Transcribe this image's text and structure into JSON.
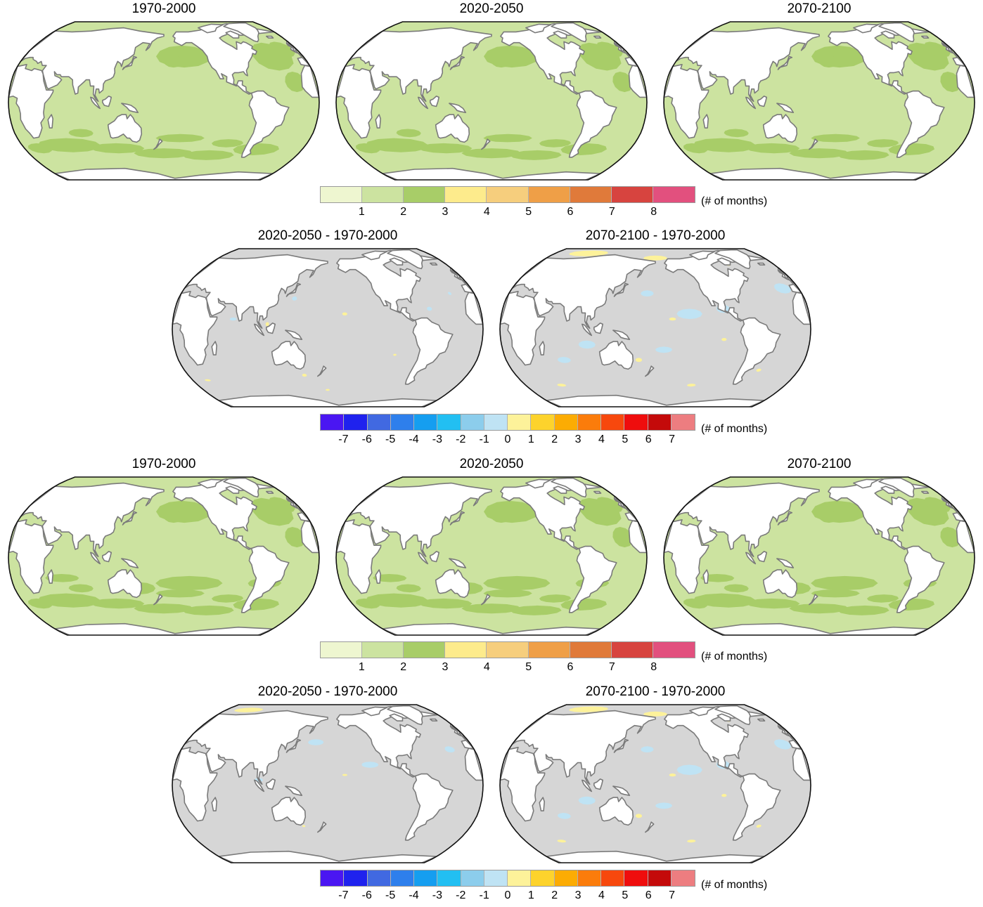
{
  "figure": {
    "block1": {
      "absolute": {
        "titles": [
          "1970-2000",
          "2020-2050",
          "2070-2100"
        ]
      },
      "absolute_colorbar": {
        "colors": [
          "#eef6d0",
          "#cce3a0",
          "#a8cd68",
          "#fdeb8c",
          "#f6ce7d",
          "#ef9f47",
          "#e07a3a",
          "#d7443f",
          "#e2507e"
        ],
        "ticks": [
          "1",
          "2",
          "3",
          "4",
          "5",
          "6",
          "7",
          "8"
        ],
        "unit": "(# of months)"
      },
      "difference": {
        "titles": [
          "2020-2050 - 1970-2000",
          "2070-2100 - 1970-2000"
        ]
      },
      "difference_colorbar": {
        "colors": [
          "#4a16f2",
          "#1f22ee",
          "#4169e1",
          "#2e7fec",
          "#159ef0",
          "#22bff2",
          "#8ccdec",
          "#bfe3f4",
          "#fdf29a",
          "#fdd32c",
          "#fcac03",
          "#fb7c0b",
          "#f7480d",
          "#ef0d0d",
          "#c40a0a",
          "#ed7d80"
        ],
        "ticks": [
          "-7",
          "-6",
          "-5",
          "-4",
          "-3",
          "-2",
          "-1",
          "0",
          "1",
          "2",
          "3",
          "4",
          "5",
          "6",
          "7"
        ],
        "unit": "(# of months)"
      }
    },
    "block2": {
      "absolute": {
        "titles": [
          "1970-2000",
          "2020-2050",
          "2070-2100"
        ]
      },
      "absolute_colorbar": {
        "colors": [
          "#eef6d0",
          "#cce3a0",
          "#a8cd68",
          "#fdeb8c",
          "#f6ce7d",
          "#ef9f47",
          "#e07a3a",
          "#d7443f",
          "#e2507e"
        ],
        "ticks": [
          "1",
          "2",
          "3",
          "4",
          "5",
          "6",
          "7",
          "8"
        ],
        "unit": "(# of months)"
      },
      "difference": {
        "titles": [
          "2020-2050 - 1970-2000",
          "2070-2100 - 1970-2000"
        ]
      },
      "difference_colorbar": {
        "colors": [
          "#4a16f2",
          "#1f22ee",
          "#4169e1",
          "#2e7fec",
          "#159ef0",
          "#22bff2",
          "#8ccdec",
          "#bfe3f4",
          "#fdf29a",
          "#fdd32c",
          "#fcac03",
          "#fb7c0b",
          "#f7480d",
          "#ef0d0d",
          "#c40a0a",
          "#ed7d80"
        ],
        "ticks": [
          "-7",
          "-6",
          "-5",
          "-4",
          "-3",
          "-2",
          "-1",
          "0",
          "1",
          "2",
          "3",
          "4",
          "5",
          "6",
          "7"
        ],
        "unit": "(# of months)"
      }
    },
    "map_colors": {
      "ocean_absolute": "#cce3a0",
      "ocean_absolute_high": "#a8cd68",
      "ocean_difference": "#d6d6d6",
      "land": "#ffffff",
      "coastline": "#7a7a7a"
    }
  }
}
